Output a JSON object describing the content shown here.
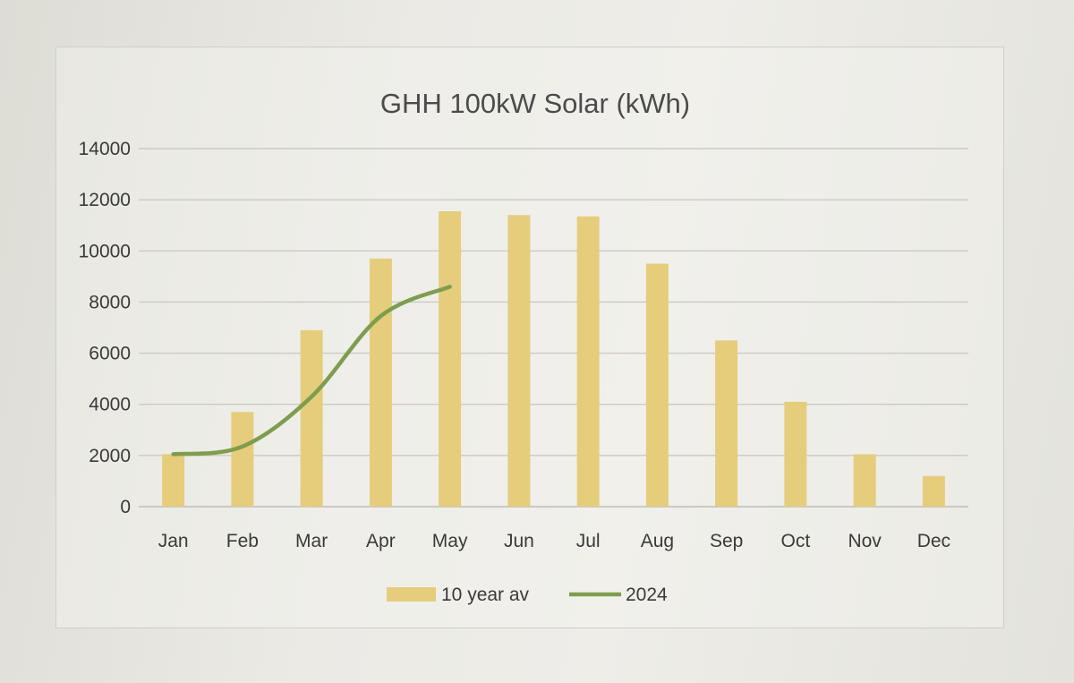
{
  "chart_data": {
    "type": "bar",
    "title": "GHH 100kW Solar (kWh)",
    "xlabel": "",
    "ylabel": "",
    "ylim": [
      0,
      14000
    ],
    "yticks": [
      0,
      2000,
      4000,
      6000,
      8000,
      10000,
      12000,
      14000
    ],
    "ytick_labels": [
      "0",
      "2000",
      "4000",
      "6000",
      "8000",
      "10000",
      "12000",
      "14000"
    ],
    "grid": true,
    "legend_position": "bottom-center",
    "categories": [
      "Jan",
      "Feb",
      "Mar",
      "Apr",
      "May",
      "Jun",
      "Jul",
      "Aug",
      "Sep",
      "Oct",
      "Nov",
      "Dec"
    ],
    "series": [
      {
        "name": "10 year av",
        "type": "bar",
        "color": "#e5cd7c",
        "values": [
          2050,
          3700,
          6900,
          9700,
          11550,
          11400,
          11350,
          9500,
          6500,
          4100,
          2050,
          1200
        ]
      },
      {
        "name": "2024",
        "type": "line",
        "color": "#7e9d4e",
        "values": [
          2050,
          2350,
          4300,
          7450,
          8600,
          null,
          null,
          null,
          null,
          null,
          null,
          null
        ]
      }
    ]
  }
}
